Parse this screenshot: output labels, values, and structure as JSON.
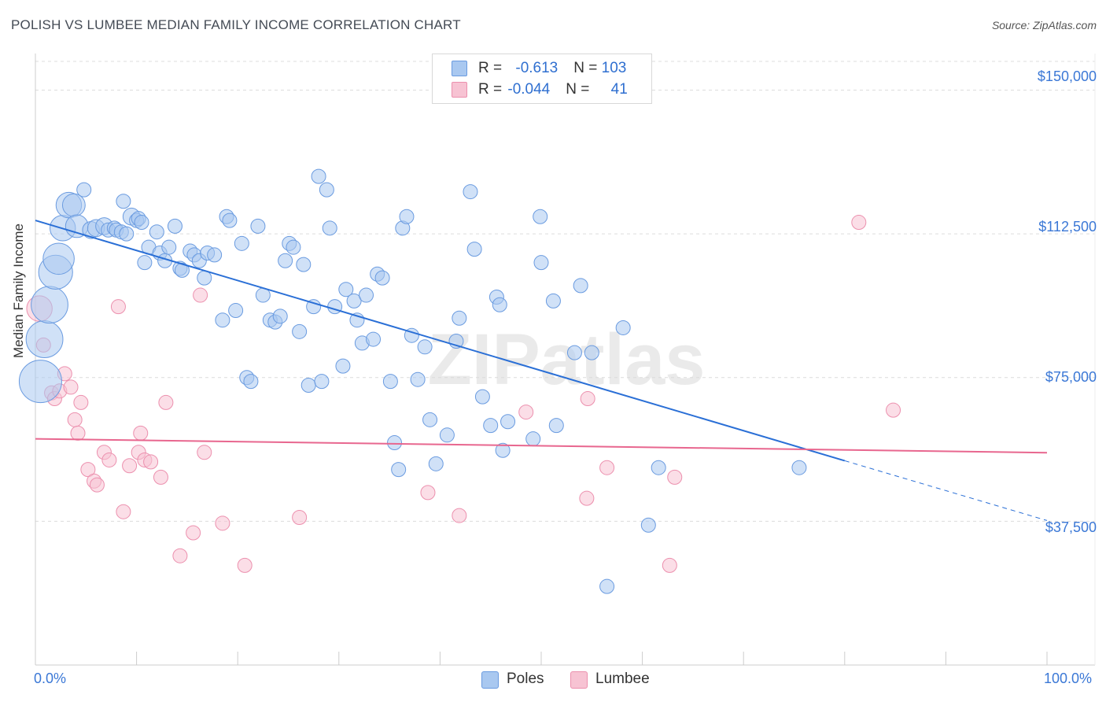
{
  "title": "POLISH VS LUMBEE MEDIAN FAMILY INCOME CORRELATION CHART",
  "source": "Source: ZipAtlas.com",
  "watermark": "ZIPatlas",
  "colors": {
    "poles_fill": "#a9c8f0",
    "poles_stroke": "#6a9be0",
    "poles_line": "#2a6fd6",
    "lumbee_fill": "#f7c3d3",
    "lumbee_stroke": "#ec90ae",
    "lumbee_line": "#e8678f",
    "axis_text": "#3b78d6",
    "grid": "#dcdcdc"
  },
  "legend": {
    "rows": [
      {
        "series": "Poles",
        "r_label": "R = ",
        "r_value": "-0.613",
        "n_label": "N = ",
        "n_value": "103"
      },
      {
        "series": "Lumbee",
        "r_label": "R = ",
        "r_value": "-0.044",
        "n_label": "N = ",
        "n_value": "41"
      }
    ]
  },
  "chart_data": {
    "type": "scatter",
    "title": "POLISH VS LUMBEE MEDIAN FAMILY INCOME CORRELATION CHART",
    "xlabel": "",
    "ylabel": "Median Family Income",
    "xlim": [
      0,
      100
    ],
    "ylim": [
      0,
      157500
    ],
    "x_tick_labels": [
      "0.0%",
      "100.0%"
    ],
    "y_ticks": [
      37500,
      75000,
      112500,
      150000
    ],
    "y_tick_labels": [
      "$37,500",
      "$75,000",
      "$112,500",
      "$150,000"
    ],
    "legend": [
      "Poles",
      "Lumbee"
    ],
    "series": [
      {
        "name": "Poles",
        "trend": {
          "x0": 0,
          "y0": 116000,
          "x1": 80,
          "y1": 53300,
          "dash_to_x": 100,
          "dash_to_y": 37700
        },
        "points": [
          [
            0.5,
            74000,
            3
          ],
          [
            0.9,
            85000,
            2.6
          ],
          [
            1.4,
            94000,
            2.6
          ],
          [
            2,
            102500,
            2.4
          ],
          [
            2.3,
            106000,
            2.2
          ],
          [
            2.7,
            114000,
            1.8
          ],
          [
            3.3,
            120000,
            1.8
          ],
          [
            3.8,
            120000,
            1.6
          ],
          [
            4.1,
            114500,
            1.6
          ],
          [
            4.8,
            124000,
            1
          ],
          [
            5.5,
            113500,
            1.2
          ],
          [
            6,
            114000,
            1.2
          ],
          [
            6.8,
            114500,
            1.2
          ],
          [
            7.2,
            113500,
            1
          ],
          [
            7.8,
            114000,
            1
          ],
          [
            8,
            113500,
            1
          ],
          [
            8.5,
            113000,
            1
          ],
          [
            8.7,
            121000,
            1
          ],
          [
            9,
            112500,
            1
          ],
          [
            9.5,
            117000,
            1.2
          ],
          [
            10,
            116000,
            1
          ],
          [
            10.2,
            116500,
            1
          ],
          [
            10.5,
            115500,
            1
          ],
          [
            10.8,
            105000,
            1
          ],
          [
            11.2,
            109000,
            1
          ],
          [
            12,
            113000,
            1
          ],
          [
            12.3,
            107500,
            1
          ],
          [
            12.8,
            105500,
            1
          ],
          [
            13.2,
            109000,
            1
          ],
          [
            13.8,
            114500,
            1
          ],
          [
            14.3,
            103500,
            1
          ],
          [
            14.5,
            103000,
            1
          ],
          [
            15.3,
            108000,
            1
          ],
          [
            15.7,
            107000,
            1
          ],
          [
            16.2,
            105500,
            1
          ],
          [
            16.7,
            101000,
            1
          ],
          [
            17,
            107500,
            1
          ],
          [
            17.7,
            107000,
            1
          ],
          [
            18.5,
            90000,
            1
          ],
          [
            18.9,
            117000,
            1
          ],
          [
            19.2,
            116000,
            1
          ],
          [
            19.8,
            92500,
            1
          ],
          [
            20.4,
            110000,
            1
          ],
          [
            20.9,
            75000,
            1
          ],
          [
            21.3,
            74000,
            1
          ],
          [
            22,
            114500,
            1
          ],
          [
            22.5,
            96500,
            1
          ],
          [
            23.2,
            90000,
            1
          ],
          [
            23.7,
            89500,
            1
          ],
          [
            24.2,
            91000,
            1
          ],
          [
            24.7,
            105500,
            1
          ],
          [
            25.1,
            110000,
            1
          ],
          [
            25.5,
            109000,
            1
          ],
          [
            26.1,
            87000,
            1
          ],
          [
            26.5,
            104500,
            1
          ],
          [
            27,
            73000,
            1
          ],
          [
            27.5,
            93500,
            1
          ],
          [
            28,
            127500,
            1
          ],
          [
            28.3,
            74000,
            1
          ],
          [
            28.8,
            124000,
            1
          ],
          [
            29.1,
            114000,
            1
          ],
          [
            29.6,
            93500,
            1
          ],
          [
            30.4,
            78000,
            1
          ],
          [
            30.7,
            98000,
            1
          ],
          [
            31.5,
            95000,
            1
          ],
          [
            31.8,
            90000,
            1
          ],
          [
            32.3,
            84000,
            1
          ],
          [
            32.7,
            96500,
            1
          ],
          [
            33.4,
            85000,
            1
          ],
          [
            33.8,
            102000,
            1
          ],
          [
            34.3,
            101000,
            1
          ],
          [
            35.1,
            74000,
            1
          ],
          [
            35.5,
            58000,
            1
          ],
          [
            35.9,
            51000,
            1
          ],
          [
            36.3,
            114000,
            1
          ],
          [
            36.7,
            117000,
            1
          ],
          [
            37.2,
            86000,
            1
          ],
          [
            37.8,
            74500,
            1
          ],
          [
            38.5,
            83000,
            1
          ],
          [
            39,
            64000,
            1
          ],
          [
            39.6,
            52500,
            1
          ],
          [
            40.7,
            60000,
            1
          ],
          [
            41.6,
            84500,
            1
          ],
          [
            41.9,
            90500,
            1
          ],
          [
            43,
            123500,
            1
          ],
          [
            43.4,
            108500,
            1
          ],
          [
            44.2,
            70000,
            1
          ],
          [
            45,
            62500,
            1
          ],
          [
            45.6,
            96000,
            1
          ],
          [
            45.9,
            94000,
            1
          ],
          [
            46.2,
            56000,
            1
          ],
          [
            46.7,
            63500,
            1
          ],
          [
            49.2,
            59000,
            1
          ],
          [
            49.9,
            117000,
            1
          ],
          [
            50,
            105000,
            1
          ],
          [
            51.2,
            95000,
            1
          ],
          [
            51.5,
            62500,
            1
          ],
          [
            53.3,
            81500,
            1
          ],
          [
            53.9,
            99000,
            1
          ],
          [
            55,
            81500,
            1
          ],
          [
            56.5,
            20500,
            1
          ],
          [
            58.1,
            88000,
            1
          ],
          [
            60.6,
            36500,
            1
          ],
          [
            61.6,
            51500,
            1
          ],
          [
            75.5,
            51500,
            1
          ]
        ]
      },
      {
        "name": "Lumbee",
        "trend": {
          "x0": 0,
          "y0": 59000,
          "x1": 100,
          "y1": 55400
        },
        "points": [
          [
            0.4,
            93000,
            1.8
          ],
          [
            0.8,
            83500,
            1
          ],
          [
            1.6,
            71000,
            1
          ],
          [
            1.9,
            69500,
            1
          ],
          [
            2.4,
            71500,
            1
          ],
          [
            2.9,
            76000,
            1
          ],
          [
            3.5,
            72500,
            1
          ],
          [
            3.9,
            64000,
            1
          ],
          [
            4.5,
            68500,
            1
          ],
          [
            4.2,
            60500,
            1
          ],
          [
            5.2,
            51000,
            1
          ],
          [
            5.8,
            48000,
            1
          ],
          [
            6.1,
            47000,
            1
          ],
          [
            6.8,
            55500,
            1
          ],
          [
            7.3,
            53500,
            1
          ],
          [
            8.2,
            93500,
            1
          ],
          [
            8.7,
            40000,
            1
          ],
          [
            9.3,
            52000,
            1
          ],
          [
            10.2,
            55500,
            1
          ],
          [
            10.4,
            60500,
            1
          ],
          [
            10.8,
            53500,
            1
          ],
          [
            11.4,
            53000,
            1
          ],
          [
            12.4,
            49000,
            1
          ],
          [
            12.9,
            68500,
            1
          ],
          [
            14.3,
            28500,
            1
          ],
          [
            15.6,
            34500,
            1
          ],
          [
            16.3,
            96500,
            1
          ],
          [
            16.7,
            55500,
            1
          ],
          [
            18.5,
            37000,
            1
          ],
          [
            20.7,
            26000,
            1
          ],
          [
            26.1,
            38500,
            1
          ],
          [
            38.8,
            45000,
            1
          ],
          [
            41.9,
            39000,
            1
          ],
          [
            48.5,
            66000,
            1
          ],
          [
            54.6,
            69500,
            1
          ],
          [
            54.5,
            43500,
            1
          ],
          [
            56.5,
            51500,
            1
          ],
          [
            62.7,
            26000,
            1
          ],
          [
            63.2,
            49000,
            1
          ],
          [
            81.4,
            115500,
            1
          ],
          [
            84.8,
            66500,
            1
          ]
        ]
      }
    ]
  }
}
